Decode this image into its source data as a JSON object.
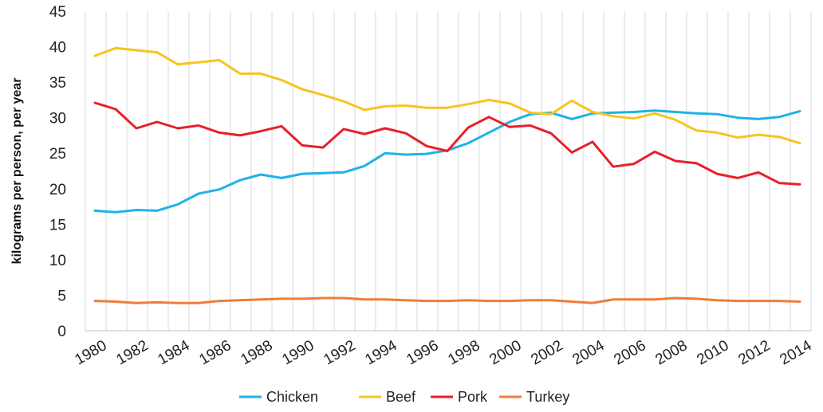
{
  "chart_data": {
    "type": "line",
    "title": "",
    "xlabel": "",
    "ylabel": "kilograms per person, per year",
    "ylim": [
      0,
      45
    ],
    "yticks": [
      0,
      5,
      10,
      15,
      20,
      25,
      30,
      35,
      40,
      45
    ],
    "xlim": [
      1980,
      2014
    ],
    "xtick_labels": [
      "1980",
      "1982",
      "1984",
      "1986",
      "1988",
      "1990",
      "1992",
      "1994",
      "1996",
      "1998",
      "2000",
      "2002",
      "2004",
      "2006",
      "2008",
      "2010",
      "2012",
      "2014"
    ],
    "grid": "vertical",
    "legend_position": "bottom",
    "x": [
      1980,
      1981,
      1982,
      1983,
      1984,
      1985,
      1986,
      1987,
      1988,
      1989,
      1990,
      1991,
      1992,
      1993,
      1994,
      1995,
      1996,
      1997,
      1998,
      1999,
      2000,
      2001,
      2002,
      2003,
      2004,
      2005,
      2006,
      2007,
      2008,
      2009,
      2010,
      2011,
      2012,
      2013,
      2014
    ],
    "series": [
      {
        "name": "Chicken",
        "color": "#1fb2e8",
        "values": [
          16.9,
          16.7,
          17.0,
          16.9,
          17.8,
          19.3,
          19.9,
          21.2,
          22.0,
          21.5,
          22.1,
          22.2,
          22.3,
          23.2,
          25.0,
          24.8,
          24.9,
          25.4,
          26.4,
          27.9,
          29.4,
          30.5,
          30.7,
          29.8,
          30.6,
          30.7,
          30.8,
          31.0,
          30.8,
          30.6,
          30.5,
          30.0,
          29.8,
          30.1,
          30.9
        ]
      },
      {
        "name": "Beef",
        "color": "#f7c41f",
        "values": [
          38.7,
          39.8,
          39.5,
          39.2,
          37.5,
          37.8,
          38.1,
          36.2,
          36.2,
          35.3,
          34.0,
          33.2,
          32.3,
          31.1,
          31.6,
          31.7,
          31.4,
          31.4,
          31.9,
          32.5,
          32.0,
          30.7,
          30.5,
          32.4,
          30.8,
          30.2,
          29.9,
          30.6,
          29.7,
          28.2,
          27.9,
          27.2,
          27.6,
          27.3,
          26.4
        ]
      },
      {
        "name": "Pork",
        "color": "#e8202a",
        "values": [
          32.1,
          31.2,
          28.5,
          29.4,
          28.5,
          28.9,
          27.9,
          27.5,
          28.1,
          28.8,
          26.1,
          25.8,
          28.4,
          27.7,
          28.5,
          27.8,
          26.0,
          25.3,
          28.6,
          30.1,
          28.7,
          28.9,
          27.8,
          25.1,
          26.6,
          23.1,
          23.5,
          25.2,
          23.9,
          23.6,
          22.1,
          21.5,
          22.3,
          20.8,
          20.6
        ]
      },
      {
        "name": "Turkey",
        "color": "#ef7d3a",
        "values": [
          4.2,
          4.1,
          3.9,
          4.0,
          3.9,
          3.9,
          4.2,
          4.3,
          4.4,
          4.5,
          4.5,
          4.6,
          4.6,
          4.4,
          4.4,
          4.3,
          4.2,
          4.2,
          4.3,
          4.2,
          4.2,
          4.3,
          4.3,
          4.1,
          3.9,
          4.4,
          4.4,
          4.4,
          4.6,
          4.5,
          4.3,
          4.2,
          4.2,
          4.2,
          4.1
        ]
      }
    ]
  }
}
